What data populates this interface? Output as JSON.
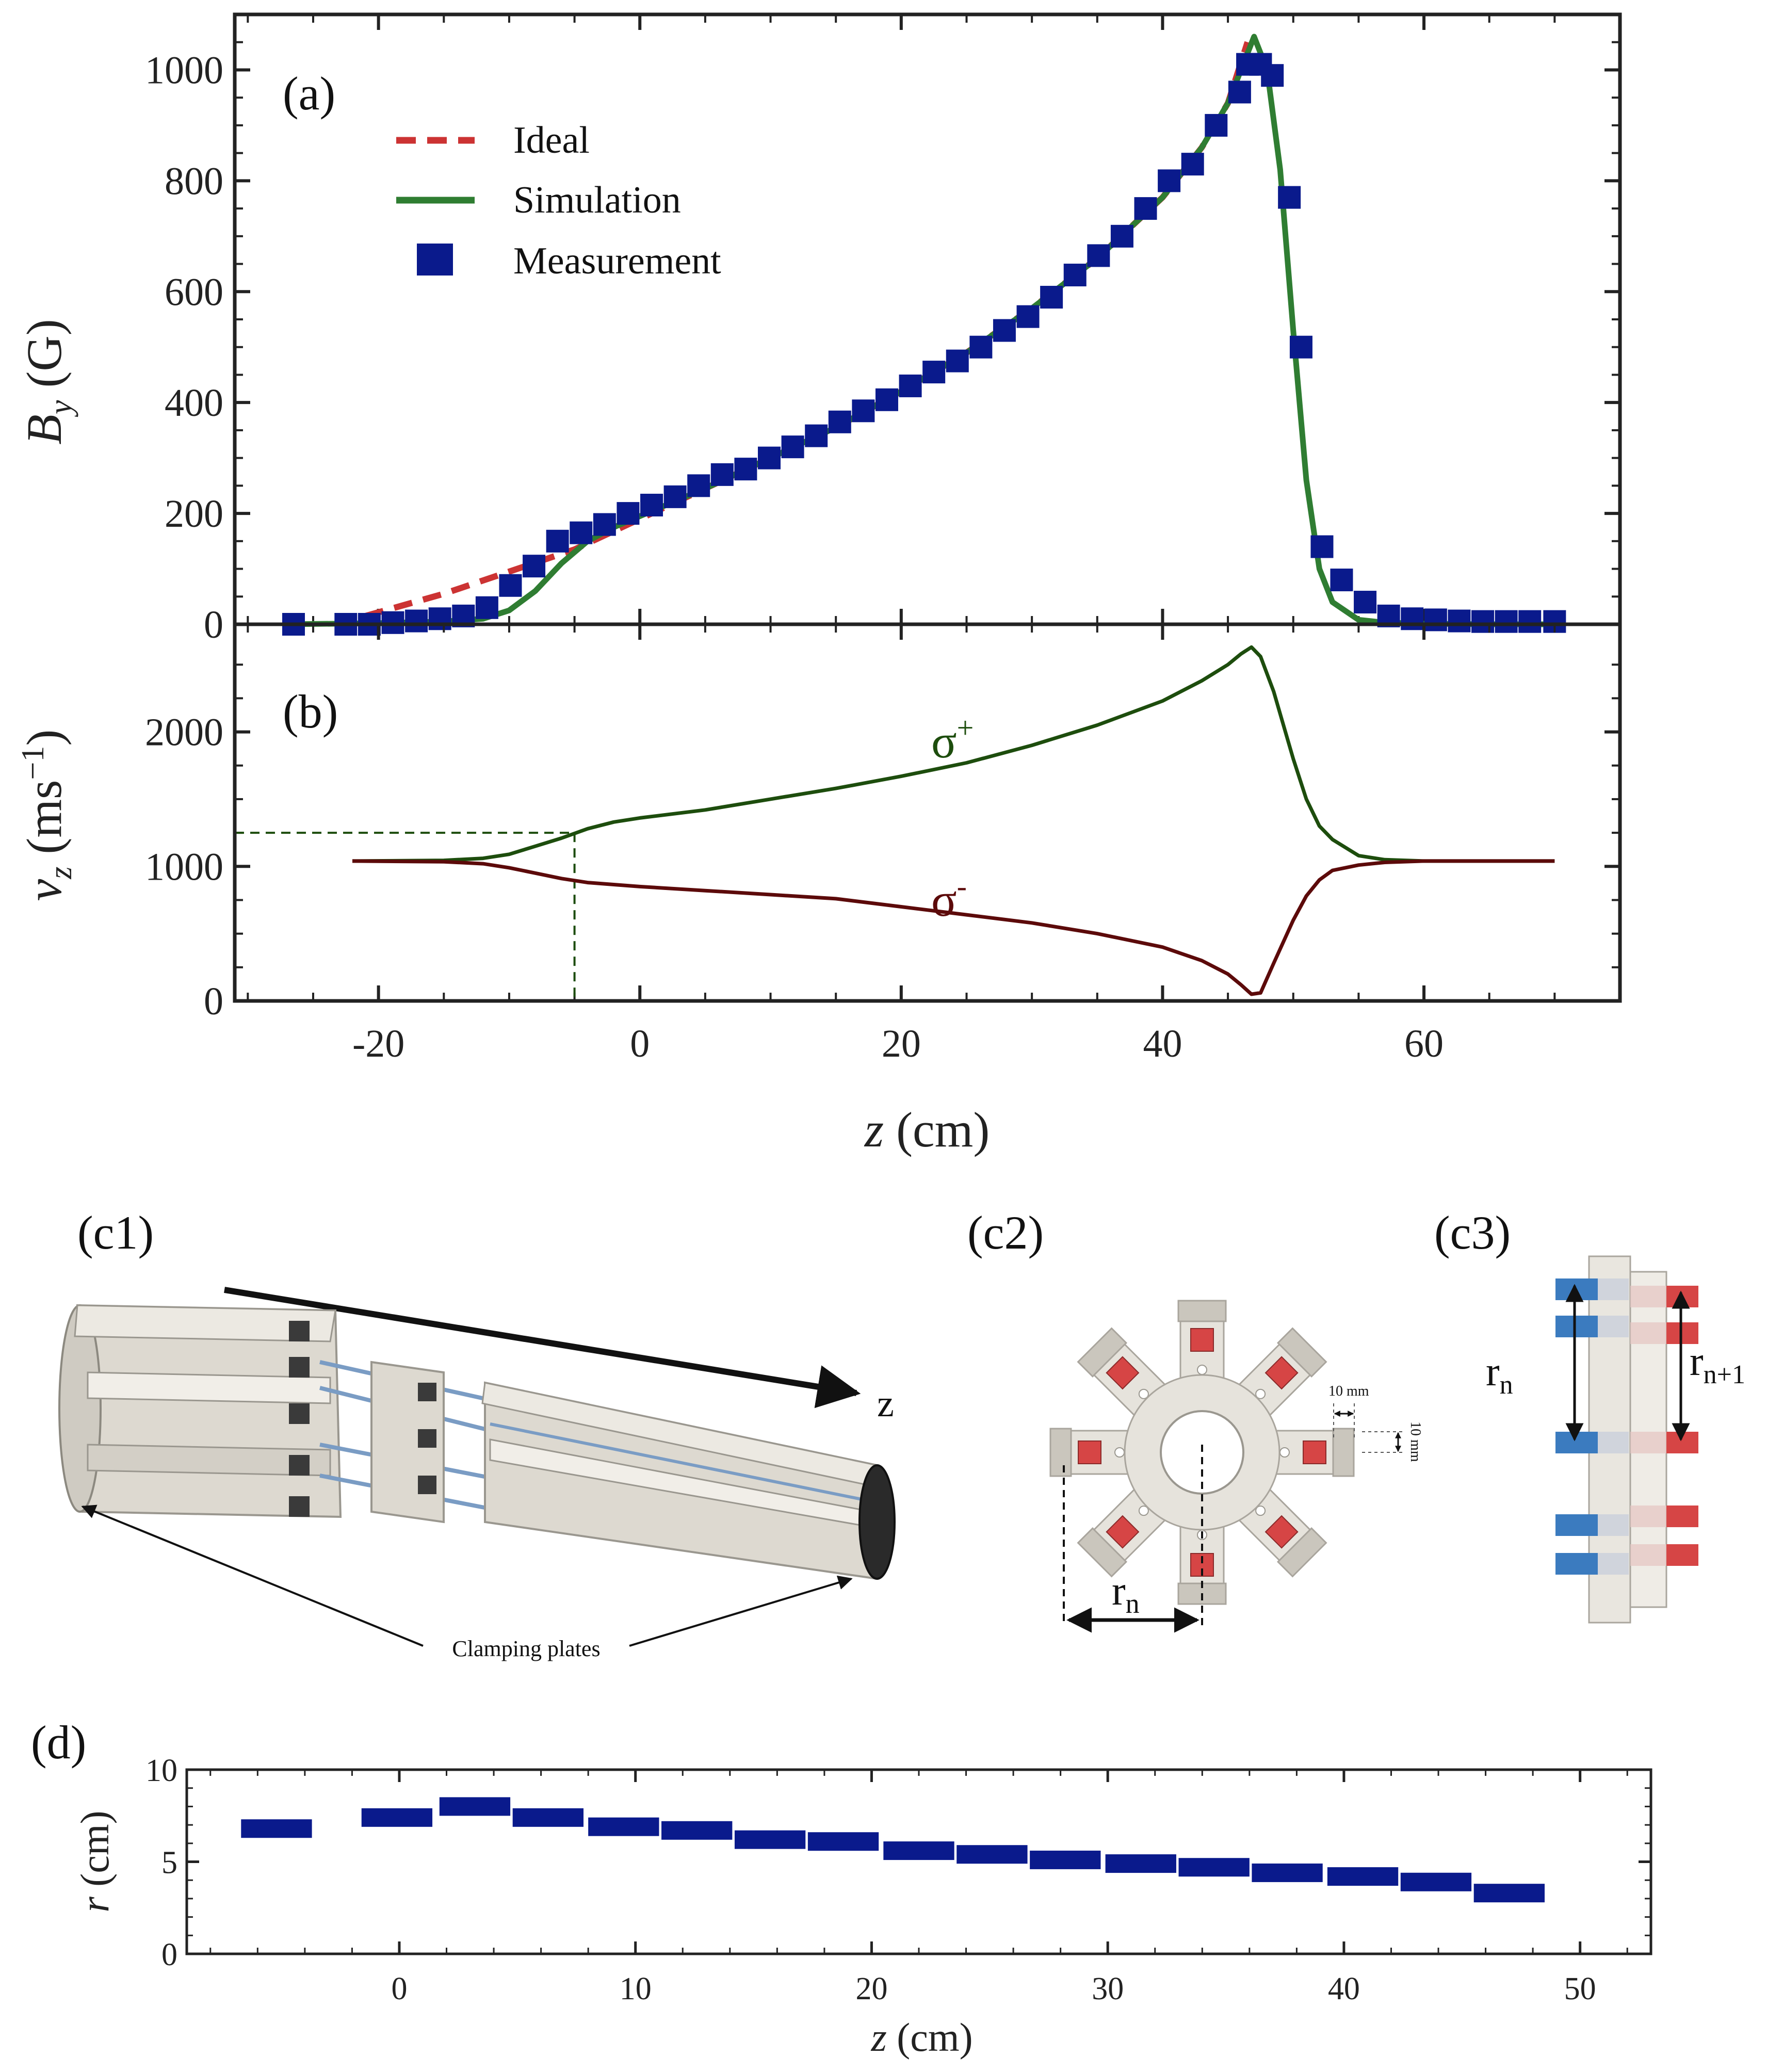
{
  "colors": {
    "ideal": "#cc3333",
    "simulation": "#2f7d32",
    "measurement": "#0a1a8c",
    "sigma_plus": "#1d4d0d",
    "sigma_minus": "#5c0a0a",
    "frame": "#222222",
    "magnet_red": "#d64545",
    "magnet_blue": "#3b7bbf",
    "body_gray": "#e6e3dc"
  },
  "panels": {
    "a": "(a)",
    "b": "(b)",
    "c1": "(c1)",
    "c2": "(c2)",
    "c3": "(c3)",
    "d": "(d)"
  },
  "legend": {
    "ideal": "Ideal",
    "simulation": "Simulation",
    "measurement": "Measurement"
  },
  "annotations": {
    "sigma_plus": "σ",
    "sigma_plus_sup": "+",
    "sigma_minus": "σ",
    "sigma_minus_sup": "-",
    "clamping": "Clamping plates",
    "z_arrow": "z",
    "rn": "r",
    "rn_sub": "n",
    "rn1_sub": "n+1",
    "dim_w": "10 mm",
    "dim_h": "10 mm"
  },
  "chart_data": [
    {
      "id": "a",
      "type": "line",
      "xlabel": "z (cm)",
      "ylabel_main": "B",
      "ylabel_sub": "y",
      "ylabel_unit": " (G)",
      "xlim": [
        -31,
        75
      ],
      "ylim": [
        0,
        1100
      ],
      "yticks": [
        0,
        200,
        400,
        600,
        800,
        1000
      ],
      "ytick_labels": [
        "0",
        "200",
        "400",
        "600",
        "800",
        "1000"
      ],
      "series": [
        {
          "name": "Ideal",
          "style": "dashed",
          "x": [
            -21,
            -15,
            -10,
            -5,
            0,
            5,
            10,
            15,
            20,
            25,
            30,
            35,
            40,
            43,
            45,
            46.5
          ],
          "y": [
            15,
            55,
            95,
            135,
            190,
            245,
            300,
            355,
            420,
            490,
            570,
            660,
            770,
            860,
            940,
            1050
          ]
        },
        {
          "name": "Simulation",
          "style": "solid",
          "x": [
            -27,
            -20,
            -15,
            -12,
            -10,
            -8,
            -6,
            -4,
            -2,
            0,
            5,
            10,
            15,
            20,
            25,
            30,
            35,
            40,
            43,
            45,
            46,
            47,
            48,
            49,
            50,
            51,
            52,
            53,
            55,
            57,
            60,
            65,
            70
          ],
          "y": [
            0,
            2,
            5,
            10,
            25,
            60,
            110,
            150,
            175,
            195,
            245,
            300,
            355,
            420,
            490,
            570,
            660,
            770,
            860,
            940,
            1000,
            1060,
            1000,
            820,
            530,
            260,
            100,
            40,
            8,
            3,
            1,
            0,
            0
          ]
        },
        {
          "name": "Measurement",
          "style": "markers",
          "x": [
            -26.5,
            -22.5,
            -20.7,
            -18.9,
            -17.1,
            -15.3,
            -13.5,
            -11.7,
            -9.9,
            -8.1,
            -6.3,
            -4.5,
            -2.7,
            -0.9,
            0.9,
            2.7,
            4.5,
            6.3,
            8.1,
            9.9,
            11.7,
            13.5,
            15.3,
            17.1,
            18.9,
            20.7,
            22.5,
            24.3,
            26.1,
            27.9,
            29.7,
            31.5,
            33.3,
            35.1,
            36.9,
            38.7,
            40.5,
            42.3,
            44.1,
            45.9,
            46.5,
            47.5,
            48.4,
            49.7,
            50.6,
            52.2,
            53.7,
            55.5,
            57.3,
            59.1,
            60.9,
            62.7,
            64.5,
            66.3,
            68.1,
            70.0
          ],
          "y": [
            0,
            0,
            0,
            3,
            6,
            10,
            15,
            30,
            70,
            105,
            150,
            165,
            180,
            200,
            215,
            230,
            250,
            270,
            280,
            300,
            320,
            340,
            365,
            385,
            405,
            430,
            455,
            475,
            500,
            530,
            555,
            590,
            630,
            665,
            700,
            750,
            800,
            830,
            900,
            960,
            1010,
            1010,
            990,
            770,
            500,
            140,
            80,
            40,
            15,
            10,
            8,
            6,
            5,
            5,
            5,
            5
          ]
        }
      ]
    },
    {
      "id": "b",
      "type": "line",
      "xlabel": "z (cm)",
      "ylabel_main": "v",
      "ylabel_sub": "z",
      "ylabel_unit": " (ms",
      "ylabel_sup": "−1",
      "ylabel_close": ")",
      "xlim": [
        -31,
        75
      ],
      "ylim": [
        0,
        2800
      ],
      "xticks": [
        -20,
        0,
        20,
        40,
        60
      ],
      "xtick_labels": [
        "-20",
        "0",
        "20",
        "40",
        "60"
      ],
      "yticks": [
        0,
        1000,
        2000
      ],
      "ytick_labels": [
        "0",
        "1000",
        "2000"
      ],
      "series": [
        {
          "name": "σ+",
          "x": [
            -22,
            -15,
            -12,
            -10,
            -8,
            -6,
            -4,
            -2,
            0,
            5,
            10,
            15,
            20,
            25,
            30,
            35,
            40,
            43,
            45,
            46,
            46.8,
            47.5,
            48.5,
            50,
            51,
            52,
            53,
            55,
            57,
            60,
            65,
            70
          ],
          "y": [
            1040,
            1045,
            1060,
            1090,
            1150,
            1210,
            1280,
            1330,
            1360,
            1420,
            1500,
            1580,
            1670,
            1770,
            1900,
            2050,
            2230,
            2380,
            2500,
            2580,
            2630,
            2560,
            2300,
            1800,
            1500,
            1300,
            1200,
            1080,
            1050,
            1040,
            1040,
            1040
          ],
          "dash_marker": {
            "x": -5,
            "y": 1250
          }
        },
        {
          "name": "σ-",
          "x": [
            -22,
            -15,
            -12,
            -10,
            -8,
            -6,
            -4,
            -2,
            0,
            5,
            10,
            15,
            20,
            25,
            30,
            35,
            40,
            43,
            45,
            46,
            46.8,
            47.5,
            48.5,
            50,
            51,
            52,
            53,
            55,
            57,
            60,
            65,
            70
          ],
          "y": [
            1040,
            1035,
            1020,
            990,
            950,
            910,
            880,
            865,
            850,
            820,
            790,
            760,
            700,
            640,
            580,
            500,
            400,
            300,
            200,
            120,
            50,
            60,
            280,
            600,
            780,
            900,
            970,
            1010,
            1030,
            1040,
            1040,
            1040
          ]
        }
      ]
    },
    {
      "id": "d",
      "type": "bar",
      "xlabel": "z (cm)",
      "ylabel": "r (cm)",
      "xlim": [
        -9,
        53
      ],
      "ylim": [
        0,
        10
      ],
      "xticks": [
        0,
        10,
        20,
        30,
        40,
        50
      ],
      "xtick_labels": [
        "0",
        "10",
        "20",
        "30",
        "40",
        "50"
      ],
      "yticks": [
        0,
        5,
        10
      ],
      "ytick_labels": [
        "0",
        "5",
        "10"
      ],
      "segment_width": 3,
      "z_centers": [
        -5.2,
        -0.1,
        3.2,
        6.3,
        9.5,
        12.6,
        15.7,
        18.8,
        22.0,
        25.1,
        28.2,
        31.4,
        34.5,
        37.6,
        40.8,
        43.9,
        47.0
      ],
      "r_values": [
        6.8,
        7.4,
        8.0,
        7.4,
        6.9,
        6.7,
        6.2,
        6.1,
        5.6,
        5.4,
        5.1,
        4.9,
        4.7,
        4.4,
        4.2,
        3.9,
        3.3
      ]
    }
  ]
}
